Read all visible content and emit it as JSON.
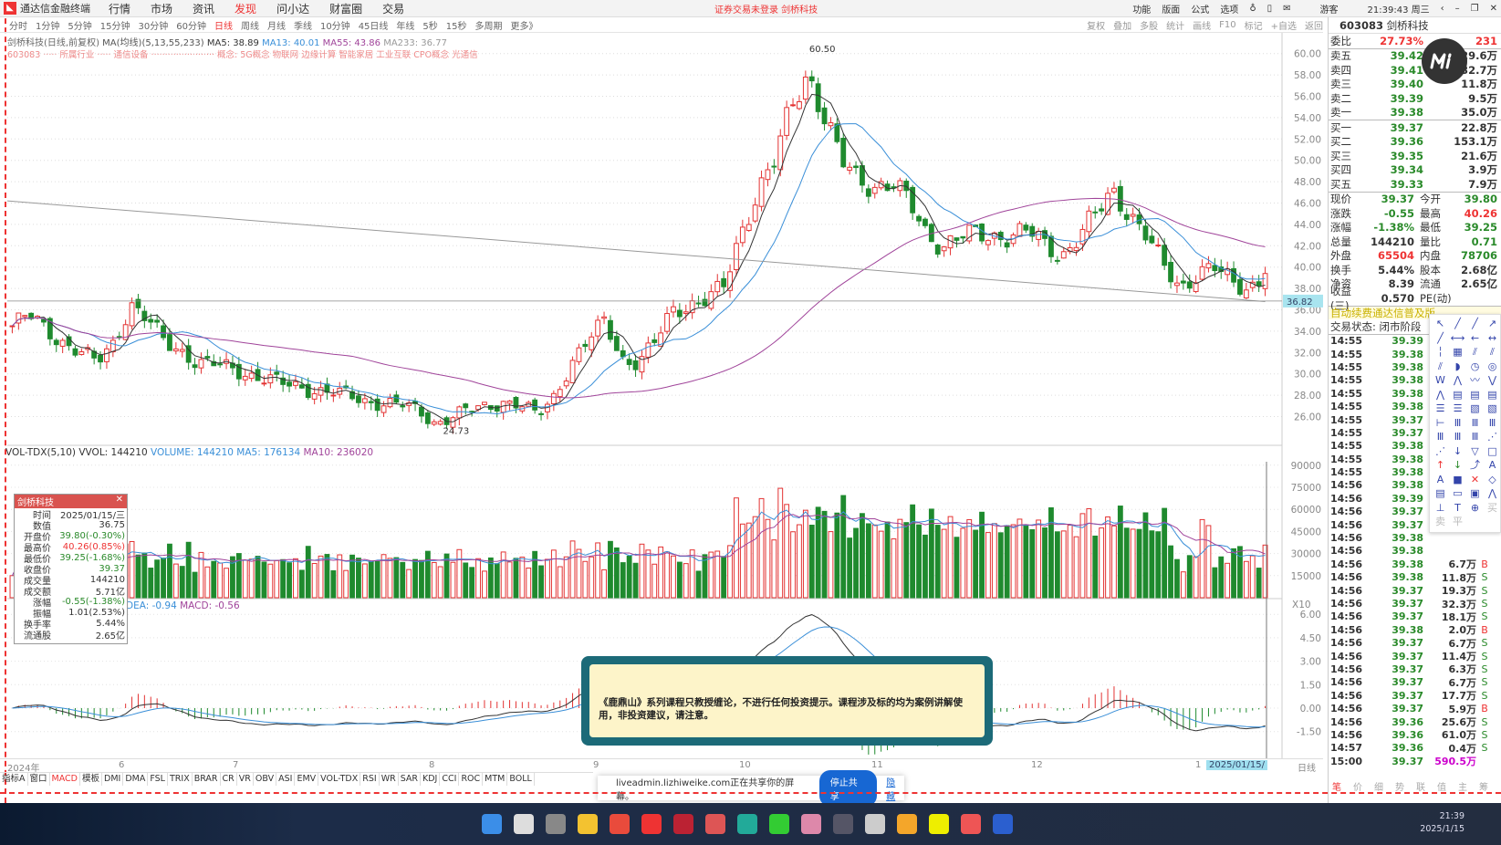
{
  "titlebar": {
    "app": "通达信金融终端",
    "menus": [
      "行情",
      "市场",
      "资讯",
      "发现",
      "问小达",
      "财富圈",
      "交易"
    ],
    "active_menu": "发现",
    "notice": "证券交易未登录  剑桥科技",
    "right_menus": [
      "功能",
      "版面",
      "公式",
      "选项"
    ],
    "user": "游客",
    "clock": "21:39:43 周三"
  },
  "periods": [
    "分时",
    "1分钟",
    "5分钟",
    "15分钟",
    "30分钟",
    "60分钟",
    "日线",
    "周线",
    "月线",
    "季线",
    "10分钟",
    "45日线",
    "年线",
    "5秒",
    "15秒",
    "多周期",
    "更多》"
  ],
  "active_period": "日线",
  "tools": [
    "复权",
    "叠加",
    "多股",
    "统计",
    "画线",
    "F10",
    "标记",
    "+自选",
    "返回"
  ],
  "info": {
    "name": "剑桥科技(日线,前复权)",
    "ma_label": "MA(均线)(5,13,55,233)",
    "ma5": "MA5: 38.89",
    "ma13": "MA13: 40.01",
    "ma55": "MA55: 43.86",
    "ma233": "MA233: 36.77",
    "line2": "603083 ····· 所属行业 ····· 通信设备 ······················· 概念:  5G概念 物联网 边缘计算 智能家居 工业互联 CPO概念 光通信"
  },
  "price_axis": [
    "60.00",
    "58.00",
    "56.00",
    "54.00",
    "52.00",
    "50.00",
    "48.00",
    "46.00",
    "44.00",
    "42.00",
    "40.00",
    "38.00",
    "36.00",
    "34.00",
    "32.00",
    "30.00",
    "28.00",
    "26.00"
  ],
  "annotations": {
    "high": "60.50",
    "low": "24.73",
    "cursor_price": "36.82"
  },
  "chart_data": {
    "type": "candlestick",
    "closes_keypoints": [
      34.5,
      35.5,
      34.2,
      33,
      32,
      31,
      33,
      36.5,
      35,
      33,
      32.2,
      31,
      30.8,
      30.5,
      30,
      29.5,
      29,
      28.8,
      28.5,
      28.2,
      27.8,
      27.5,
      27.3,
      27,
      26.5,
      25.5,
      26,
      26.5,
      27,
      27.5,
      27,
      26,
      28,
      31,
      33,
      35,
      31.5,
      31,
      33,
      36,
      36.5,
      37,
      38,
      43,
      47,
      50,
      55,
      58,
      54,
      50,
      48,
      47.5,
      48,
      46,
      43,
      42,
      43,
      43,
      42.8,
      43,
      43.5,
      42,
      41,
      43,
      45,
      47,
      45,
      43,
      40,
      38,
      39.5,
      40,
      38.5,
      38,
      39.4
    ],
    "ma233_range": [
      46.2,
      36.77
    ]
  },
  "volume": {
    "header": "VOL-TDX(5,10)",
    "vvol": "VVOL: 144210",
    "volume": "VOLUME: 144210",
    "ma5": "MA5: 176134",
    "ma10": "MA10: 236020",
    "axis": [
      "90000",
      "75000",
      "60000",
      "45000",
      "30000",
      "15000"
    ],
    "unit": "X10"
  },
  "macd": {
    "header": "DEA: -0.94",
    "macd": "MACD: -0.56",
    "axis": [
      "6.00",
      "4.50",
      "3.00",
      "1.50",
      "0.00",
      "-1.50"
    ]
  },
  "popup": {
    "title": "剑桥科技",
    "rows": [
      [
        "时间",
        "2025/01/15/三",
        "k"
      ],
      [
        "数值",
        "36.75",
        "k"
      ],
      [
        "开盘价",
        "39.80(-0.30%)",
        "g"
      ],
      [
        "最高价",
        "40.26(0.85%)",
        "rd"
      ],
      [
        "最低价",
        "39.25(-1.68%)",
        "g"
      ],
      [
        "收盘价",
        "39.37",
        "g"
      ],
      [
        "成交量",
        "144210",
        "k"
      ],
      [
        "成交额",
        "5.71亿",
        "k"
      ],
      [
        "涨幅",
        "-0.55(-1.38%)",
        "g"
      ],
      [
        "振幅",
        "1.01(2.53%)",
        "k"
      ],
      [
        "换手率",
        "5.44%",
        "k"
      ],
      [
        "流通股",
        "2.65亿",
        "k"
      ]
    ]
  },
  "quote": {
    "code": "603083",
    "name": "剑桥科技",
    "webi_label": "委比",
    "webi": "27.73%",
    "webi_r_label": "委差",
    "webi_r": "231",
    "asks": [
      [
        "卖五",
        "39.42",
        "29.6万"
      ],
      [
        "卖四",
        "39.41",
        "32.7万"
      ],
      [
        "卖三",
        "39.40",
        "11.8万"
      ],
      [
        "卖二",
        "39.39",
        "9.5万"
      ],
      [
        "卖一",
        "39.38",
        "35.0万"
      ]
    ],
    "bids": [
      [
        "买一",
        "39.37",
        "22.8万"
      ],
      [
        "买二",
        "39.36",
        "153.1万"
      ],
      [
        "买三",
        "39.35",
        "21.6万"
      ],
      [
        "买四",
        "39.34",
        "3.9万"
      ],
      [
        "买五",
        "39.33",
        "7.9万"
      ]
    ],
    "stats": [
      [
        "现价",
        "39.37",
        "g",
        "今开",
        "39.80",
        "g"
      ],
      [
        "涨跌",
        "-0.55",
        "g",
        "最高",
        "40.26",
        "rd"
      ],
      [
        "涨幅",
        "-1.38%",
        "g",
        "最低",
        "39.25",
        "g"
      ],
      [
        "总量",
        "144210",
        "k",
        "量比",
        "0.71",
        "g"
      ],
      [
        "外盘",
        "65504",
        "rd",
        "内盘",
        "78706",
        "g"
      ],
      [
        "换手",
        "5.44%",
        "k",
        "股本",
        "2.68亿",
        "k"
      ],
      [
        "净资",
        "8.39",
        "k",
        "流通",
        "2.65亿",
        "k"
      ],
      [
        "收益(三)",
        "0.570",
        "k",
        "PE(动)",
        "",
        ""
      ]
    ],
    "ad": "自动续费通达信普及版",
    "state": "交易状态: 闭市阶段"
  },
  "ticks": [
    [
      "14:55",
      "39.39",
      "",
      ""
    ],
    [
      "14:55",
      "39.38",
      "",
      ""
    ],
    [
      "14:55",
      "39.38",
      "",
      ""
    ],
    [
      "14:55",
      "39.38",
      "",
      ""
    ],
    [
      "14:55",
      "39.38",
      "",
      ""
    ],
    [
      "14:55",
      "39.38",
      "",
      ""
    ],
    [
      "14:55",
      "39.37",
      "",
      ""
    ],
    [
      "14:55",
      "39.37",
      "",
      ""
    ],
    [
      "14:55",
      "39.38",
      "",
      ""
    ],
    [
      "14:55",
      "39.38",
      "",
      ""
    ],
    [
      "14:55",
      "39.38",
      "",
      ""
    ],
    [
      "14:56",
      "39.38",
      "",
      ""
    ],
    [
      "14:56",
      "39.39",
      "",
      ""
    ],
    [
      "14:56",
      "39.37",
      "",
      ""
    ],
    [
      "14:56",
      "39.37",
      "",
      ""
    ],
    [
      "14:56",
      "39.38",
      "",
      ""
    ],
    [
      "14:56",
      "39.38",
      "",
      ""
    ],
    [
      "14:56",
      "39.38",
      "6.7万",
      "B"
    ],
    [
      "14:56",
      "39.38",
      "11.8万",
      "S"
    ],
    [
      "14:56",
      "39.37",
      "19.3万",
      "S"
    ],
    [
      "14:56",
      "39.37",
      "32.3万",
      "S"
    ],
    [
      "14:56",
      "39.37",
      "18.1万",
      "S"
    ],
    [
      "14:56",
      "39.38",
      "2.0万",
      "B"
    ],
    [
      "14:56",
      "39.37",
      "6.7万",
      "S"
    ],
    [
      "14:56",
      "39.37",
      "11.4万",
      "S"
    ],
    [
      "14:56",
      "39.37",
      "6.3万",
      "S"
    ],
    [
      "14:56",
      "39.37",
      "6.7万",
      "S"
    ],
    [
      "14:56",
      "39.37",
      "17.7万",
      "S"
    ],
    [
      "14:56",
      "39.37",
      "5.9万",
      "B"
    ],
    [
      "14:56",
      "39.36",
      "25.6万",
      "S"
    ],
    [
      "14:56",
      "39.36",
      "61.0万",
      "S"
    ],
    [
      "14:57",
      "39.36",
      "0.4万",
      "S"
    ],
    [
      "15:00",
      "39.37",
      "590.5万",
      ""
    ]
  ],
  "drawbar": {
    "bottom_labels": [
      "买",
      "卖",
      "平"
    ]
  },
  "dates": [
    "2024年",
    "6",
    "7",
    "8",
    "9",
    "10",
    "11",
    "12",
    "1",
    "2025/01/15/"
  ],
  "date_right": "日线",
  "tabs": [
    "指标A",
    "窗口",
    "MACD",
    "模板",
    "DMI",
    "DMA",
    "FSL",
    "TRIX",
    "BRAR",
    "CR",
    "VR",
    "OBV",
    "ASI",
    "EMV",
    "VOL-TDX",
    "RSI",
    "WR",
    "SAR",
    "KDJ",
    "CCI",
    "ROC",
    "MTM",
    "BOLL"
  ],
  "active_tab": "MACD",
  "modal": {
    "text": "《鹿鼎山》系列课程只教授缠论，不进行任何投资提示。课程涉及标的均为案例讲解使用，非投资建议，请注意。"
  },
  "share": {
    "text": "liveadmin.lizhiweike.com正在共享你的屏幕。",
    "stop": "停止共享",
    "hide": "隐藏"
  },
  "rp_bottom_tabs": [
    "笔",
    "价",
    "细",
    "势",
    "联",
    "值",
    "主",
    "筹"
  ],
  "taskbar": {
    "time": "21:39",
    "date": "2025/1/15"
  },
  "colors": {
    "up": "#e33333",
    "down": "#1f8a2e",
    "ma5": "#333333",
    "ma13": "#3a8fd8",
    "ma55": "#a0449a",
    "ma233": "#999999",
    "modal_border": "#1c6a78"
  }
}
